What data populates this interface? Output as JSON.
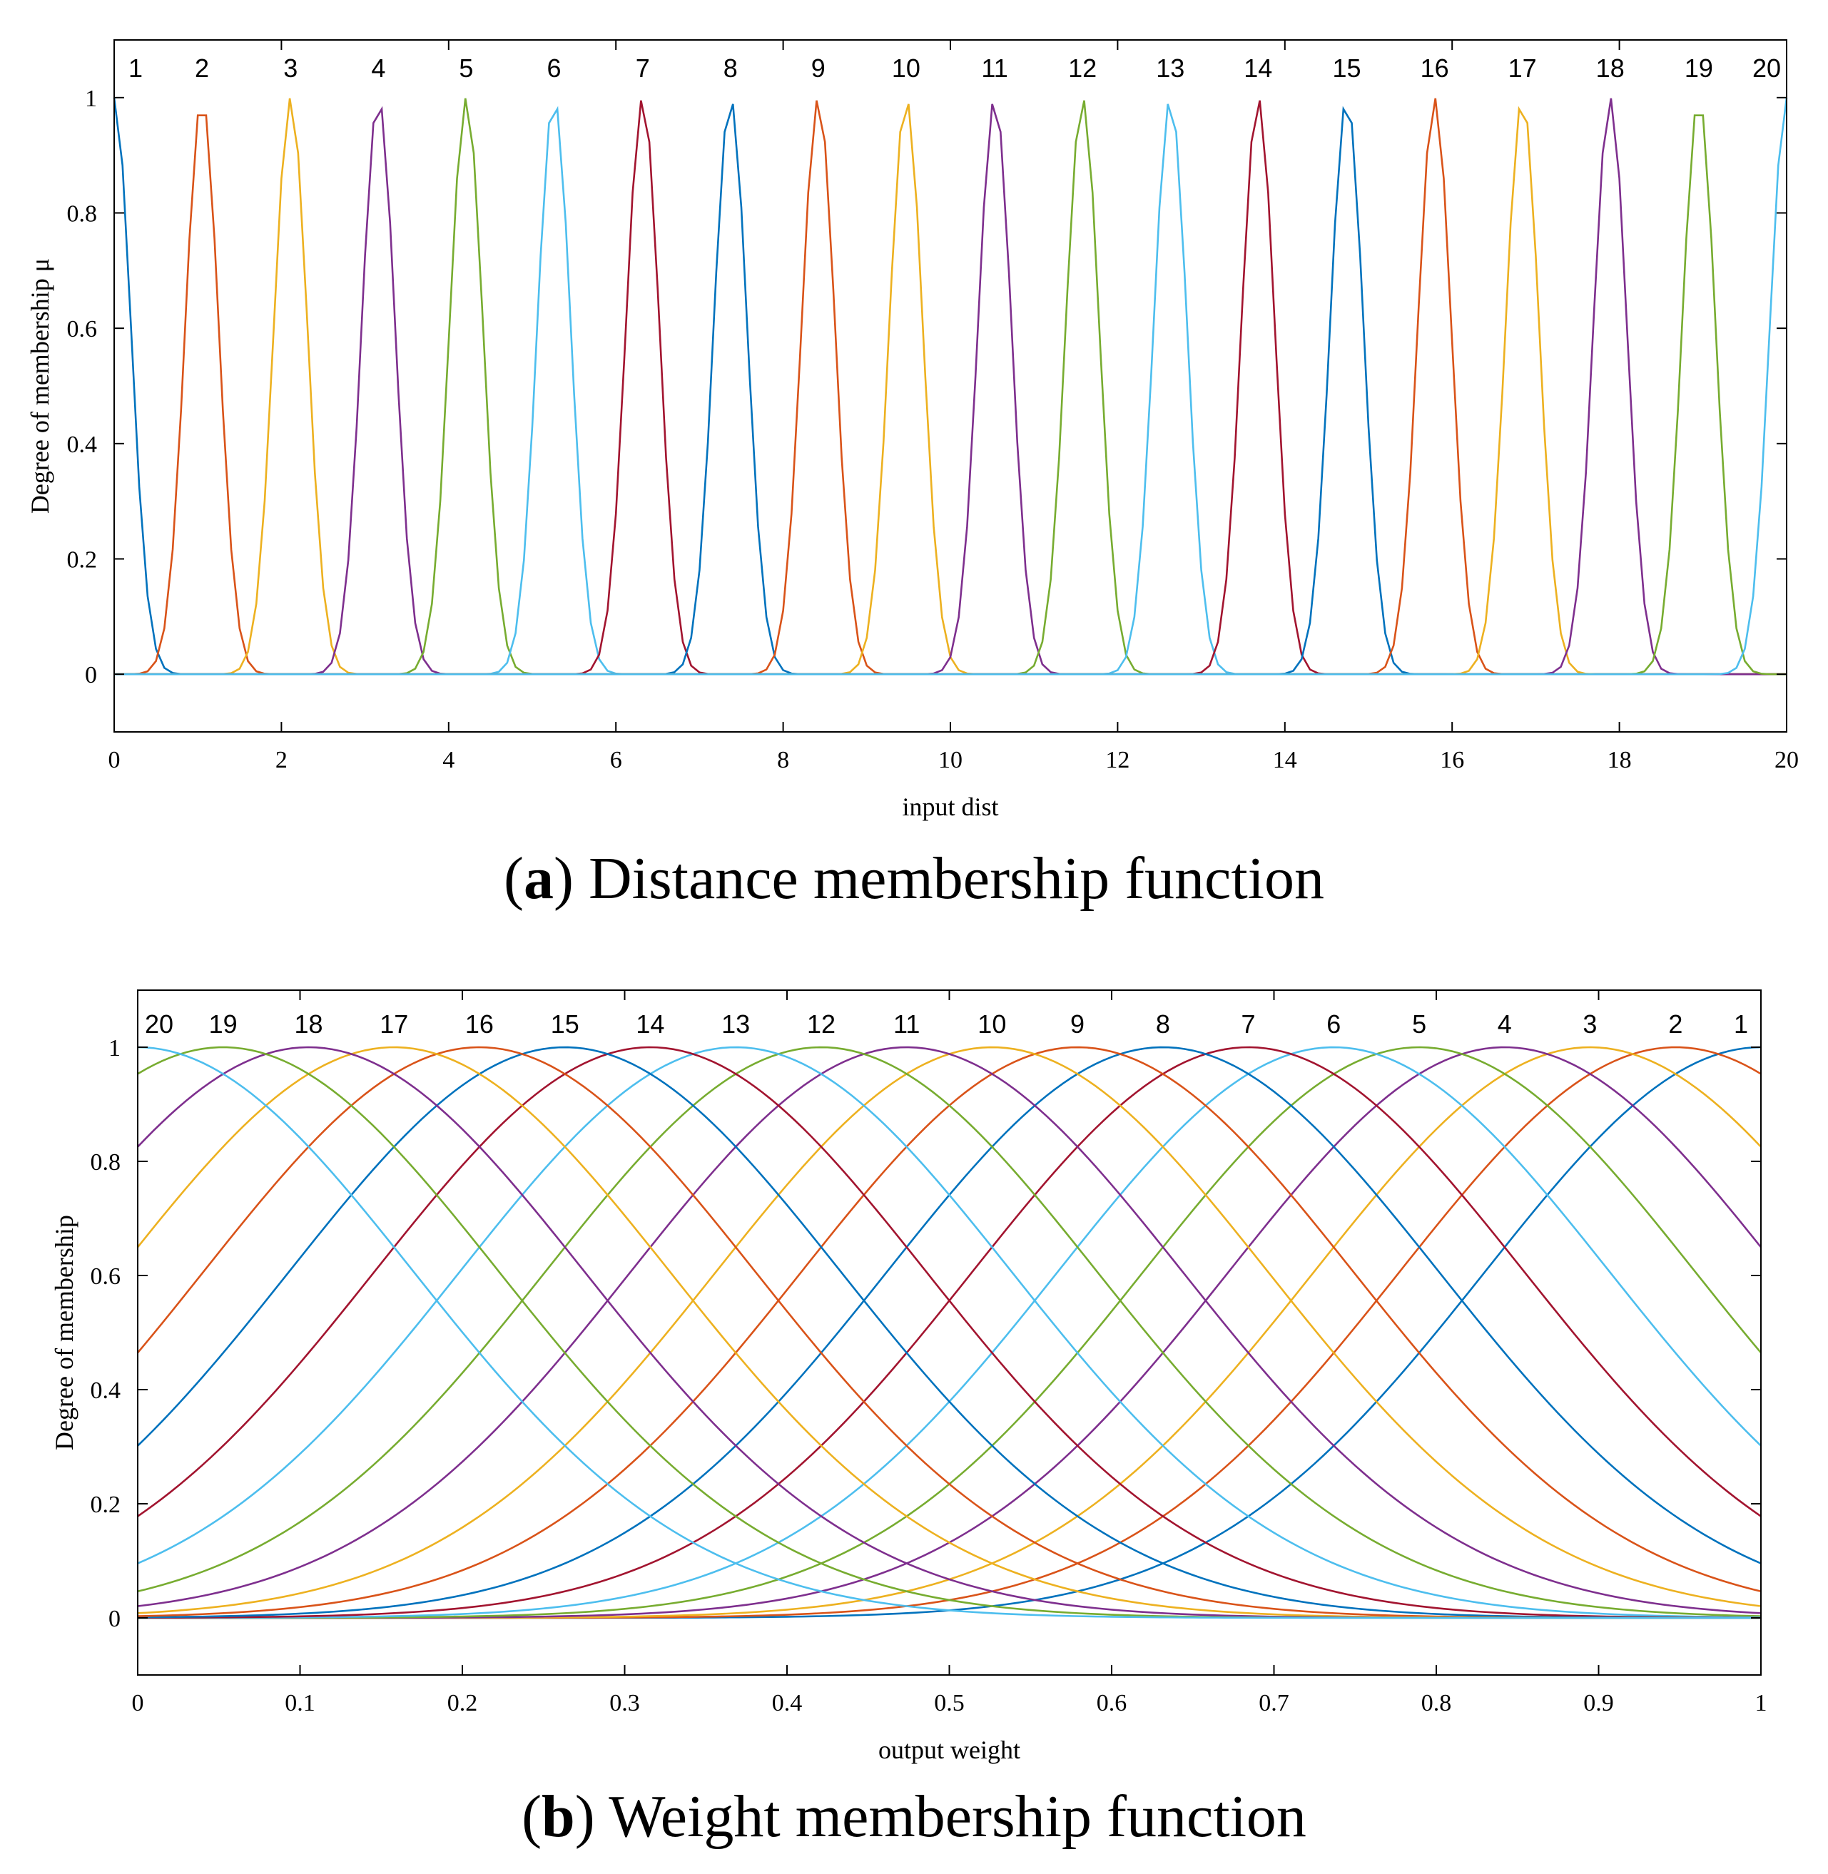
{
  "colors": [
    "#0072BD",
    "#D95319",
    "#EDB120",
    "#7E2F8E",
    "#77AC30",
    "#4DBEEE",
    "#A2142F"
  ],
  "captions": [
    {
      "letter": "a",
      "text": "Distance membership function"
    },
    {
      "letter": "b",
      "text": "Weight membership function"
    }
  ],
  "chart_data": [
    {
      "type": "line",
      "title": "",
      "xlabel": "input dist",
      "ylabel": "Degree of membership μ",
      "xlim": [
        0,
        20
      ],
      "ylim": [
        -0.1,
        1.1
      ],
      "xticks": [
        0,
        2,
        4,
        6,
        8,
        10,
        12,
        14,
        16,
        18,
        20
      ],
      "yticks": [
        0,
        0.2,
        0.4,
        0.6,
        0.8,
        1
      ],
      "grid": false,
      "membership_shape": "gaussian",
      "sigma": 0.2,
      "x_range": [
        0,
        20
      ],
      "sample_step": 0.1,
      "series": [
        {
          "name": "1",
          "center": 0.0
        },
        {
          "name": "2",
          "center": 1.05
        },
        {
          "name": "3",
          "center": 2.11
        },
        {
          "name": "4",
          "center": 3.16
        },
        {
          "name": "5",
          "center": 4.21
        },
        {
          "name": "6",
          "center": 5.26
        },
        {
          "name": "7",
          "center": 6.32
        },
        {
          "name": "8",
          "center": 7.37
        },
        {
          "name": "9",
          "center": 8.42
        },
        {
          "name": "10",
          "center": 9.47
        },
        {
          "name": "11",
          "center": 10.53
        },
        {
          "name": "12",
          "center": 11.58
        },
        {
          "name": "13",
          "center": 12.63
        },
        {
          "name": "14",
          "center": 13.68
        },
        {
          "name": "15",
          "center": 14.74
        },
        {
          "name": "16",
          "center": 15.79
        },
        {
          "name": "17",
          "center": 16.84
        },
        {
          "name": "18",
          "center": 17.89
        },
        {
          "name": "19",
          "center": 18.95
        },
        {
          "name": "20",
          "center": 20.0
        }
      ]
    },
    {
      "type": "line",
      "title": "",
      "xlabel": "output weight",
      "ylabel": "Degree of membership",
      "xlim": [
        0,
        1
      ],
      "ylim": [
        -0.1,
        1.1
      ],
      "xticks": [
        0,
        0.1,
        0.2,
        0.3,
        0.4,
        0.5,
        0.6,
        0.7,
        0.8,
        0.9,
        1
      ],
      "yticks": [
        0,
        0.2,
        0.4,
        0.6,
        0.8,
        1
      ],
      "grid": false,
      "membership_shape": "gaussian",
      "sigma": 0.17,
      "x_range": [
        0,
        1
      ],
      "sample_step": 0.005,
      "series": [
        {
          "name": "1",
          "center": 1.0
        },
        {
          "name": "2",
          "center": 0.9474
        },
        {
          "name": "3",
          "center": 0.8947
        },
        {
          "name": "4",
          "center": 0.8421
        },
        {
          "name": "5",
          "center": 0.7895
        },
        {
          "name": "6",
          "center": 0.7368
        },
        {
          "name": "7",
          "center": 0.6842
        },
        {
          "name": "8",
          "center": 0.6316
        },
        {
          "name": "9",
          "center": 0.5789
        },
        {
          "name": "10",
          "center": 0.5263
        },
        {
          "name": "11",
          "center": 0.4737
        },
        {
          "name": "12",
          "center": 0.4211
        },
        {
          "name": "13",
          "center": 0.3684
        },
        {
          "name": "14",
          "center": 0.3158
        },
        {
          "name": "15",
          "center": 0.2632
        },
        {
          "name": "16",
          "center": 0.2105
        },
        {
          "name": "17",
          "center": 0.1579
        },
        {
          "name": "18",
          "center": 0.1053
        },
        {
          "name": "19",
          "center": 0.0526
        },
        {
          "name": "20",
          "center": 0.0
        }
      ]
    }
  ]
}
